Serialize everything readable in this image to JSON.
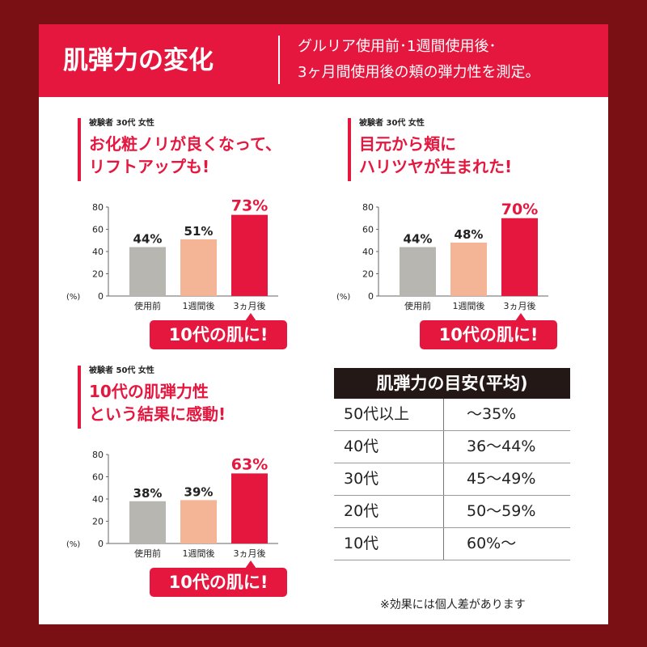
{
  "header": {
    "title": "肌弾力の変化",
    "subtitle_line1": "グルリア使用前･1週間使用後･",
    "subtitle_line2": "3ヶ月間使用後の頬の弾力性を測定。"
  },
  "colors": {
    "background": "#7b1014",
    "accent": "#e5173f",
    "before": "#b7b6b1",
    "week": "#f3b596",
    "months": "#e5173f"
  },
  "chart_data": [
    {
      "type": "bar",
      "subject": "被験者 30代 女性",
      "headline1": "お化粧ノリが良くなって、",
      "headline2": "リフトアップも!",
      "ylabel": "(%)",
      "ylim": [
        0,
        80
      ],
      "yticks": [
        0,
        20,
        40,
        60,
        80
      ],
      "categories": [
        "使用前",
        "1週間後",
        "3ヵ月後"
      ],
      "values": [
        44,
        51,
        73
      ],
      "labels": [
        "44%",
        "51%",
        "73%"
      ],
      "callout": "10代の肌に!"
    },
    {
      "type": "bar",
      "subject": "被験者 30代 女性",
      "headline1": "目元から頬に",
      "headline2": "ハリツヤが生まれた!",
      "ylabel": "(%)",
      "ylim": [
        0,
        80
      ],
      "yticks": [
        0,
        20,
        40,
        60,
        80
      ],
      "categories": [
        "使用前",
        "1週間後",
        "3ヵ月後"
      ],
      "values": [
        44,
        48,
        70
      ],
      "labels": [
        "44%",
        "48%",
        "70%"
      ],
      "callout": "10代の肌に!"
    },
    {
      "type": "bar",
      "subject": "被験者 50代 女性",
      "headline1": "10代の肌弾力性",
      "headline2": "という結果に感動!",
      "ylabel": "(%)",
      "ylim": [
        0,
        80
      ],
      "yticks": [
        0,
        20,
        40,
        60,
        80
      ],
      "categories": [
        "使用前",
        "1週間後",
        "3ヵ月後"
      ],
      "values": [
        38,
        39,
        63
      ],
      "labels": [
        "38%",
        "39%",
        "63%"
      ],
      "callout": "10代の肌に!"
    }
  ],
  "table": {
    "title": "肌弾力の目安(平均)",
    "rows": [
      [
        "50代以上",
        "〜35%"
      ],
      [
        "40代",
        "36〜44%"
      ],
      [
        "30代",
        "45〜49%"
      ],
      [
        "20代",
        "50〜59%"
      ],
      [
        "10代",
        "60%〜"
      ]
    ]
  },
  "note": "※効果には個人差があります"
}
